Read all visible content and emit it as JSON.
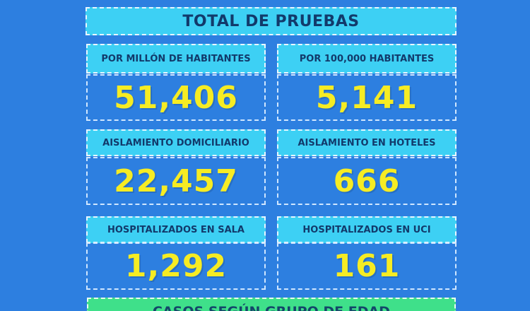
{
  "title": "TOTAL DE PRUEBAS",
  "cards": [
    {
      "label": "POR MILLÓN DE HABITANTES",
      "value": "51,406"
    },
    {
      "label": "POR 100,000 HABITANTES",
      "value": "5,141"
    },
    {
      "label": "AISLAMIENTO DOMICILIARIO",
      "value": "22,457"
    },
    {
      "label": "AISLAMIENTO EN HOTELES",
      "value": "666"
    },
    {
      "label": "HOSPITALIZADOS EN SALA",
      "value": "1,292"
    },
    {
      "label": "HOSPITALIZADOS EN UCI",
      "value": "161"
    }
  ],
  "bottom_banner": "CASOS SEGÚN GRUPO DE EDAD",
  "colors": {
    "background": "#2d7fe0",
    "label_banner": "#3dd0f4",
    "value_text": "#f6ec23",
    "bottom_banner": "#3fe08a"
  }
}
